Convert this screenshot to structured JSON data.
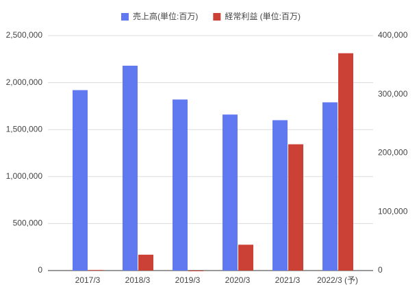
{
  "chart_data": {
    "type": "bar",
    "categories": [
      "2017/3",
      "2018/3",
      "2019/3",
      "2020/3",
      "2021/3",
      "2022/3 (予)"
    ],
    "series": [
      {
        "name": "売上高(単位:百万)",
        "color": "#6078f0",
        "values": [
          1920000,
          2180000,
          1820000,
          1660000,
          1600000,
          1790000
        ]
      },
      {
        "name": "経常利益 (単位:百万)",
        "color": "#cc4136",
        "axis": "y2",
        "values": [
          1000,
          27000,
          -1000,
          44000,
          215000,
          370000
        ]
      }
    ],
    "ylim": [
      0,
      2500000
    ],
    "yticks": [
      0,
      {
        "value": 500000,
        "label": "500,000"
      },
      {
        "value": 1000000,
        "label": "1,000,000"
      },
      {
        "value": 1500000,
        "label": "1,500,000"
      },
      {
        "value": 2000000,
        "label": "2,000,000"
      },
      {
        "value": 2500000,
        "label": "2,500,000"
      }
    ],
    "y2lim": [
      0,
      400000
    ],
    "y2ticks": [
      0,
      {
        "value": 100000,
        "label": "100,000"
      },
      {
        "value": 200000,
        "label": "200,000"
      },
      {
        "value": 300000,
        "label": "300,000"
      },
      {
        "value": 400000,
        "label": "400,000"
      }
    ],
    "grid": true,
    "legend": "top"
  }
}
